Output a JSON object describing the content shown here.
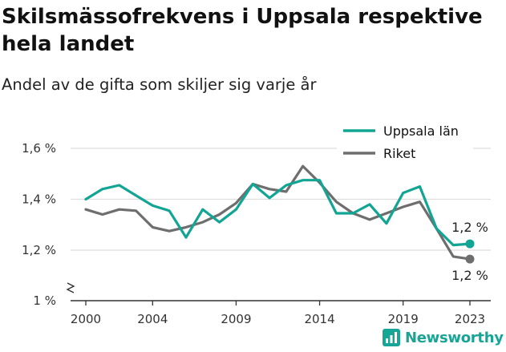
{
  "title": "Skilsmässofrekvens i Uppsala respektive hela landet",
  "subtitle": "Andel av de gifta som skiljer sig varje år",
  "brand": "Newsworthy",
  "colors": {
    "uppsala": "#12a594",
    "riket": "#6e6e6e",
    "grid": "#dddddd",
    "axis": "#333333"
  },
  "chart_data": {
    "type": "line",
    "x": [
      2000,
      2001,
      2002,
      2003,
      2004,
      2005,
      2006,
      2007,
      2008,
      2009,
      2010,
      2011,
      2012,
      2013,
      2014,
      2015,
      2016,
      2017,
      2018,
      2019,
      2020,
      2021,
      2022,
      2023
    ],
    "x_ticks": [
      2000,
      2004,
      2009,
      2014,
      2019,
      2023
    ],
    "y_ticks": [
      {
        "value": 1.0,
        "label": "1 %"
      },
      {
        "value": 1.2,
        "label": "1,2 %"
      },
      {
        "value": 1.4,
        "label": "1,4 %"
      },
      {
        "value": 1.6,
        "label": "1,6 %"
      }
    ],
    "ylim": [
      1.0,
      1.65
    ],
    "axis_break": true,
    "grid": true,
    "legend_position": "top-right",
    "series": [
      {
        "name": "Uppsala län",
        "color": "#12a594",
        "values": [
          1.4,
          1.44,
          1.455,
          1.415,
          1.375,
          1.355,
          1.25,
          1.36,
          1.31,
          1.36,
          1.46,
          1.405,
          1.455,
          1.475,
          1.475,
          1.345,
          1.345,
          1.38,
          1.305,
          1.425,
          1.45,
          1.285,
          1.22,
          1.225
        ],
        "end_label": "1,2 %"
      },
      {
        "name": "Riket",
        "color": "#6e6e6e",
        "values": [
          1.36,
          1.34,
          1.36,
          1.355,
          1.29,
          1.275,
          1.29,
          1.31,
          1.34,
          1.385,
          1.46,
          1.44,
          1.43,
          1.53,
          1.465,
          1.39,
          1.345,
          1.32,
          1.345,
          1.37,
          1.39,
          1.285,
          1.175,
          1.165
        ],
        "end_label": "1,2 %"
      }
    ]
  }
}
